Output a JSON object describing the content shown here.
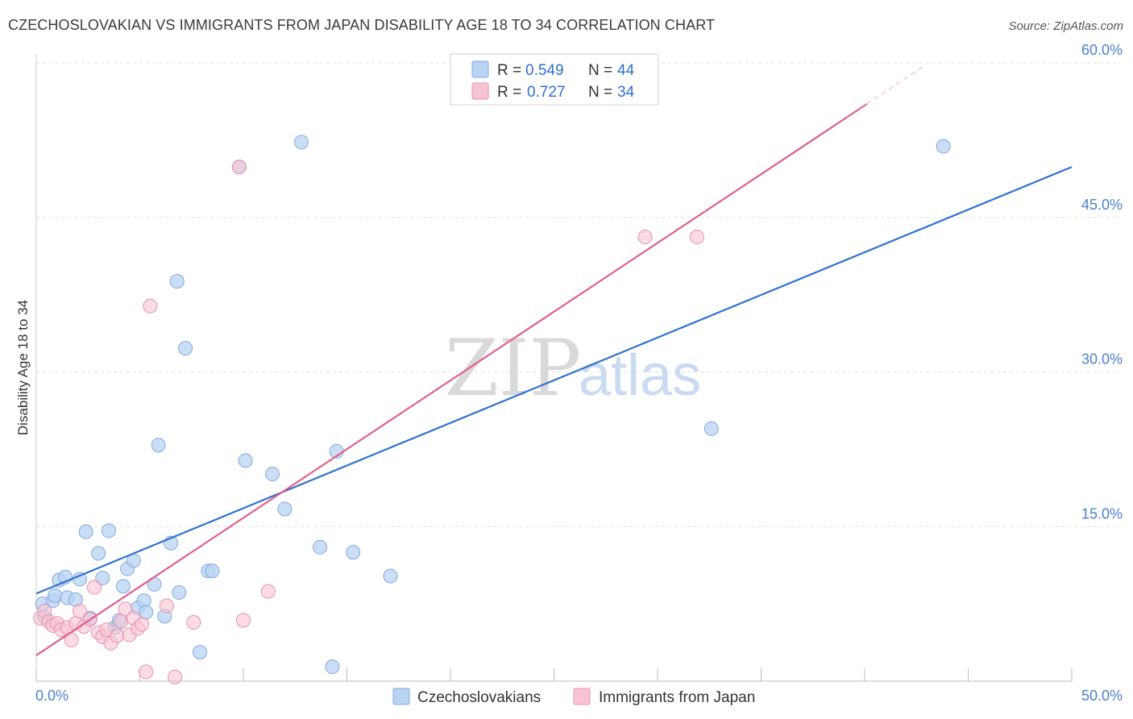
{
  "header": {
    "title": "CZECHOSLOVAKIAN VS IMMIGRANTS FROM JAPAN DISABILITY AGE 18 TO 34 CORRELATION CHART",
    "source": "Source: ZipAtlas.com"
  },
  "watermark": {
    "zip": "ZIP",
    "atlas": "atlas"
  },
  "legend": {
    "rows": [
      {
        "r_label": "R =",
        "r_value": "0.549",
        "n_label": "N =",
        "n_value": "44"
      },
      {
        "r_label": "R =",
        "r_value": "0.727",
        "n_label": "N =",
        "n_value": "34"
      }
    ]
  },
  "colors": {
    "blue_fill": "#b8d3f3",
    "blue_stroke": "#7fa9e0",
    "blue_line": "#2f72d0",
    "pink_fill": "#f8c4d4",
    "pink_stroke": "#e88fab",
    "pink_line": "#e0608a",
    "grid": "#dddddd",
    "tick_text": "#4a7fd0"
  },
  "chart_data": {
    "type": "scatter",
    "title": "CZECHOSLOVAKIAN VS IMMIGRANTS FROM JAPAN DISABILITY AGE 18 TO 34 CORRELATION CHART",
    "xlabel": "",
    "ylabel": "Disability Age 18 to 34",
    "xlim": [
      0,
      50
    ],
    "ylim": [
      0,
      60
    ],
    "x_tick_labels": [
      "0.0%",
      "50.0%"
    ],
    "y_ticks": [
      15,
      30,
      45,
      60
    ],
    "y_tick_labels": [
      "15.0%",
      "30.0%",
      "45.0%",
      "60.0%"
    ],
    "grid": true,
    "legend_placement": "top-center",
    "series": [
      {
        "name": "Czechoslovakians",
        "r": 0.549,
        "n": 44,
        "trend": {
          "x": [
            0,
            50
          ],
          "y": [
            8.5,
            49.9
          ]
        },
        "points": [
          [
            0.3,
            7.5
          ],
          [
            0.4,
            6.2
          ],
          [
            0.8,
            7.8
          ],
          [
            0.9,
            8.3
          ],
          [
            1.1,
            9.8
          ],
          [
            1.4,
            10.1
          ],
          [
            1.5,
            8.1
          ],
          [
            1.9,
            7.9
          ],
          [
            2.1,
            9.9
          ],
          [
            2.4,
            14.5
          ],
          [
            2.6,
            6.1
          ],
          [
            3.0,
            12.4
          ],
          [
            3.2,
            10.0
          ],
          [
            3.5,
            14.6
          ],
          [
            3.8,
            5.2
          ],
          [
            4.0,
            5.9
          ],
          [
            4.2,
            9.2
          ],
          [
            4.4,
            10.9
          ],
          [
            4.7,
            11.7
          ],
          [
            4.9,
            7.1
          ],
          [
            5.2,
            7.8
          ],
          [
            5.3,
            6.7
          ],
          [
            5.7,
            9.4
          ],
          [
            5.9,
            22.9
          ],
          [
            6.2,
            6.3
          ],
          [
            6.5,
            13.4
          ],
          [
            6.8,
            38.8
          ],
          [
            6.9,
            8.6
          ],
          [
            7.2,
            32.3
          ],
          [
            7.9,
            2.8
          ],
          [
            8.3,
            10.7
          ],
          [
            8.5,
            10.7
          ],
          [
            9.8,
            49.9
          ],
          [
            10.1,
            21.4
          ],
          [
            11.4,
            20.1
          ],
          [
            12.0,
            16.7
          ],
          [
            12.8,
            52.3
          ],
          [
            13.7,
            13.0
          ],
          [
            14.3,
            1.4
          ],
          [
            14.5,
            22.3
          ],
          [
            15.3,
            12.5
          ],
          [
            17.1,
            10.2
          ],
          [
            32.6,
            24.5
          ],
          [
            43.8,
            51.9
          ]
        ]
      },
      {
        "name": "Immigrants from Japan",
        "r": 0.727,
        "n": 34,
        "trend": {
          "x": [
            0,
            40.1
          ],
          "y": [
            2.5,
            56.0
          ]
        },
        "points": [
          [
            0.2,
            6.1
          ],
          [
            0.4,
            6.8
          ],
          [
            0.6,
            5.8
          ],
          [
            0.8,
            5.4
          ],
          [
            1.0,
            5.6
          ],
          [
            1.2,
            5.0
          ],
          [
            1.5,
            5.2
          ],
          [
            1.7,
            4.0
          ],
          [
            1.9,
            5.6
          ],
          [
            2.1,
            6.8
          ],
          [
            2.3,
            5.3
          ],
          [
            2.6,
            6.0
          ],
          [
            2.8,
            9.1
          ],
          [
            3.0,
            4.7
          ],
          [
            3.2,
            4.3
          ],
          [
            3.4,
            5.0
          ],
          [
            3.6,
            3.7
          ],
          [
            3.9,
            4.4
          ],
          [
            4.1,
            5.8
          ],
          [
            4.3,
            7.0
          ],
          [
            4.5,
            4.5
          ],
          [
            4.7,
            6.1
          ],
          [
            4.9,
            5.1
          ],
          [
            5.1,
            5.5
          ],
          [
            5.3,
            0.9
          ],
          [
            5.5,
            36.4
          ],
          [
            6.3,
            7.3
          ],
          [
            6.7,
            0.4
          ],
          [
            7.6,
            5.7
          ],
          [
            9.8,
            49.9
          ],
          [
            10.0,
            5.9
          ],
          [
            11.2,
            8.7
          ],
          [
            29.4,
            43.1
          ],
          [
            31.9,
            43.1
          ]
        ]
      }
    ]
  }
}
